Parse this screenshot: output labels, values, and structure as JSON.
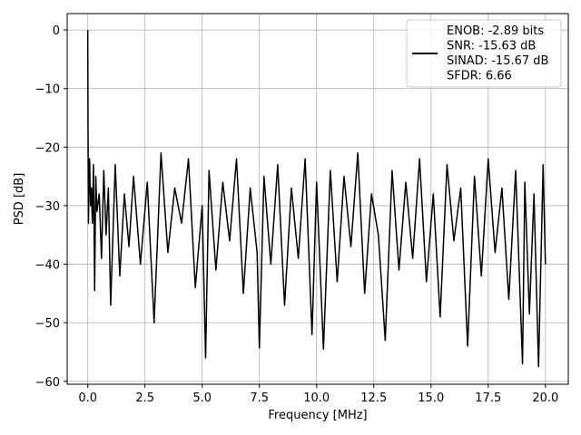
{
  "chart_data": {
    "type": "line",
    "title": "",
    "xlabel": "Frequency [MHz]",
    "ylabel": "PSD [dB]",
    "xlim": [
      -0.9,
      21.0
    ],
    "ylim": [
      -60.5,
      2.8
    ],
    "xticks": [
      0.0,
      2.5,
      5.0,
      7.5,
      10.0,
      12.5,
      15.0,
      17.5,
      20.0
    ],
    "xtick_labels": [
      "0.0",
      "2.5",
      "5.0",
      "7.5",
      "10.0",
      "12.5",
      "15.0",
      "17.5",
      "20.0"
    ],
    "yticks": [
      0,
      -10,
      -20,
      -30,
      -40,
      -50,
      -60
    ],
    "ytick_labels": [
      "0",
      "−10",
      "−20",
      "−30",
      "−40",
      "−50",
      "−60"
    ],
    "grid": true,
    "legend_position": "top-right",
    "legend": {
      "lines": [
        "ENOB: -2.89 bits",
        "SNR: -15.63 dB",
        "SINAD: -15.67 dB",
        "SFDR: 6.66"
      ],
      "line_color": "#000000"
    },
    "series": [
      {
        "color": "#000000",
        "x": [
          0.0,
          0.01,
          0.03,
          0.05,
          0.08,
          0.12,
          0.16,
          0.2,
          0.25,
          0.3,
          0.35,
          0.4,
          0.5,
          0.6,
          0.7,
          0.8,
          0.9,
          1.0,
          1.2,
          1.4,
          1.6,
          1.8,
          2.0,
          2.3,
          2.6,
          2.9,
          3.2,
          3.5,
          3.8,
          4.1,
          4.4,
          4.7,
          5.0,
          5.15,
          5.3,
          5.6,
          5.9,
          6.2,
          6.5,
          6.8,
          7.1,
          7.4,
          7.5,
          7.7,
          8.0,
          8.3,
          8.6,
          8.9,
          9.2,
          9.5,
          9.8,
          10.0,
          10.3,
          10.6,
          10.9,
          11.2,
          11.5,
          11.8,
          12.1,
          12.4,
          12.7,
          13.0,
          13.3,
          13.6,
          13.9,
          14.2,
          14.5,
          14.8,
          15.1,
          15.4,
          15.7,
          16.0,
          16.3,
          16.6,
          16.9,
          17.2,
          17.5,
          17.8,
          18.1,
          18.4,
          18.7,
          19.0,
          19.1,
          19.3,
          19.5,
          19.7,
          19.9,
          20.0
        ],
        "y": [
          0.0,
          -15.0,
          -33.0,
          -26.0,
          -22.0,
          -30.0,
          -27.0,
          -33.0,
          -23.0,
          -44.5,
          -25.0,
          -31.0,
          -28.0,
          -39.0,
          -24.0,
          -35.0,
          -27.0,
          -47.0,
          -23.0,
          -42.0,
          -28.0,
          -37.0,
          -25.0,
          -40.0,
          -26.0,
          -50.0,
          -21.0,
          -38.0,
          -27.0,
          -33.0,
          -22.0,
          -44.0,
          -30.0,
          -56.0,
          -24.0,
          -41.0,
          -26.0,
          -36.0,
          -22.0,
          -45.0,
          -27.0,
          -38.0,
          -54.3,
          -25.0,
          -40.0,
          -23.0,
          -47.0,
          -27.0,
          -39.0,
          -22.0,
          -52.0,
          -26.0,
          -54.5,
          -24.0,
          -43.0,
          -25.0,
          -37.0,
          -21.0,
          -45.0,
          -28.0,
          -35.0,
          -53.0,
          -24.0,
          -41.0,
          -26.0,
          -39.0,
          -22.0,
          -43.0,
          -28.0,
          -49.0,
          -23.0,
          -36.0,
          -27.0,
          -54.0,
          -25.0,
          -42.0,
          -22.0,
          -38.0,
          -27.0,
          -46.0,
          -24.0,
          -57.0,
          -26.0,
          -48.5,
          -28.0,
          -57.5,
          -23.0,
          -40.0
        ]
      }
    ]
  }
}
